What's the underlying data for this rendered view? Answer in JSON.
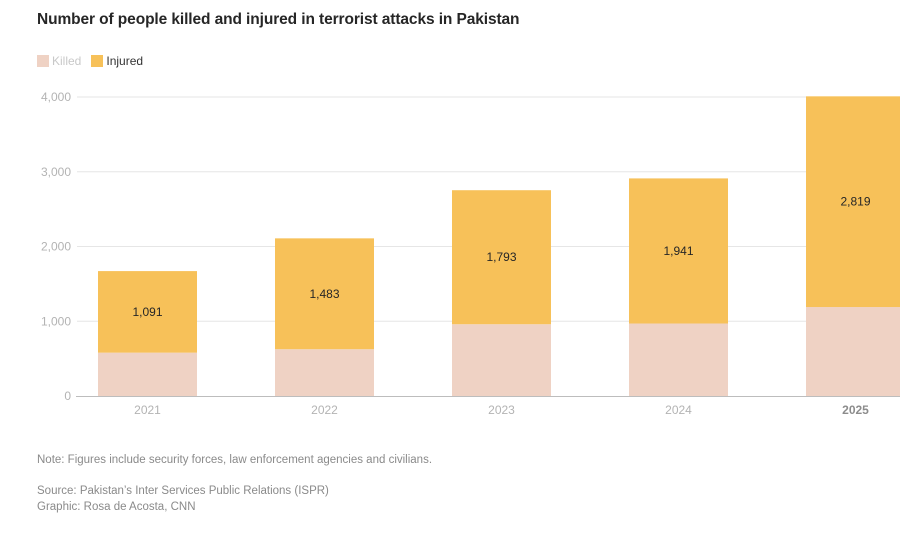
{
  "chart_data": {
    "type": "bar",
    "stacked": true,
    "title": "Number of people killed and injured in terrorist attacks in Pakistan",
    "xlabel": "",
    "ylabel": "",
    "categories": [
      "2021",
      "2022",
      "2023",
      "2024",
      "2025"
    ],
    "highlight_category": "2025",
    "series": [
      {
        "name": "Killed",
        "color": "#EFD2C4",
        "values": [
          580,
          626,
          960,
          970,
          1190
        ],
        "show_labels": false
      },
      {
        "name": "Injured",
        "color": "#F7C159",
        "values": [
          1091,
          1483,
          1793,
          1941,
          2819
        ],
        "show_labels": true
      }
    ],
    "data_labels": [
      "1,091",
      "1,483",
      "1,793",
      "1,941",
      "2,819"
    ],
    "ylim": [
      0,
      4000
    ],
    "yticks": [
      0,
      1000,
      2000,
      3000,
      4000
    ],
    "ytick_labels": [
      "0",
      "1,000",
      "2,000",
      "3,000",
      "4,000"
    ],
    "grid": true,
    "legend_position": "top-left"
  },
  "legend": {
    "killed_label": "Killed",
    "injured_label": "Injured"
  },
  "footer": {
    "note": "Note: Figures include security forces, law enforcement agencies and civilians.",
    "source": "Source: Pakistan’s Inter Services Public Relations (ISPR)",
    "graphic": "Graphic: Rosa de Acosta, CNN"
  }
}
